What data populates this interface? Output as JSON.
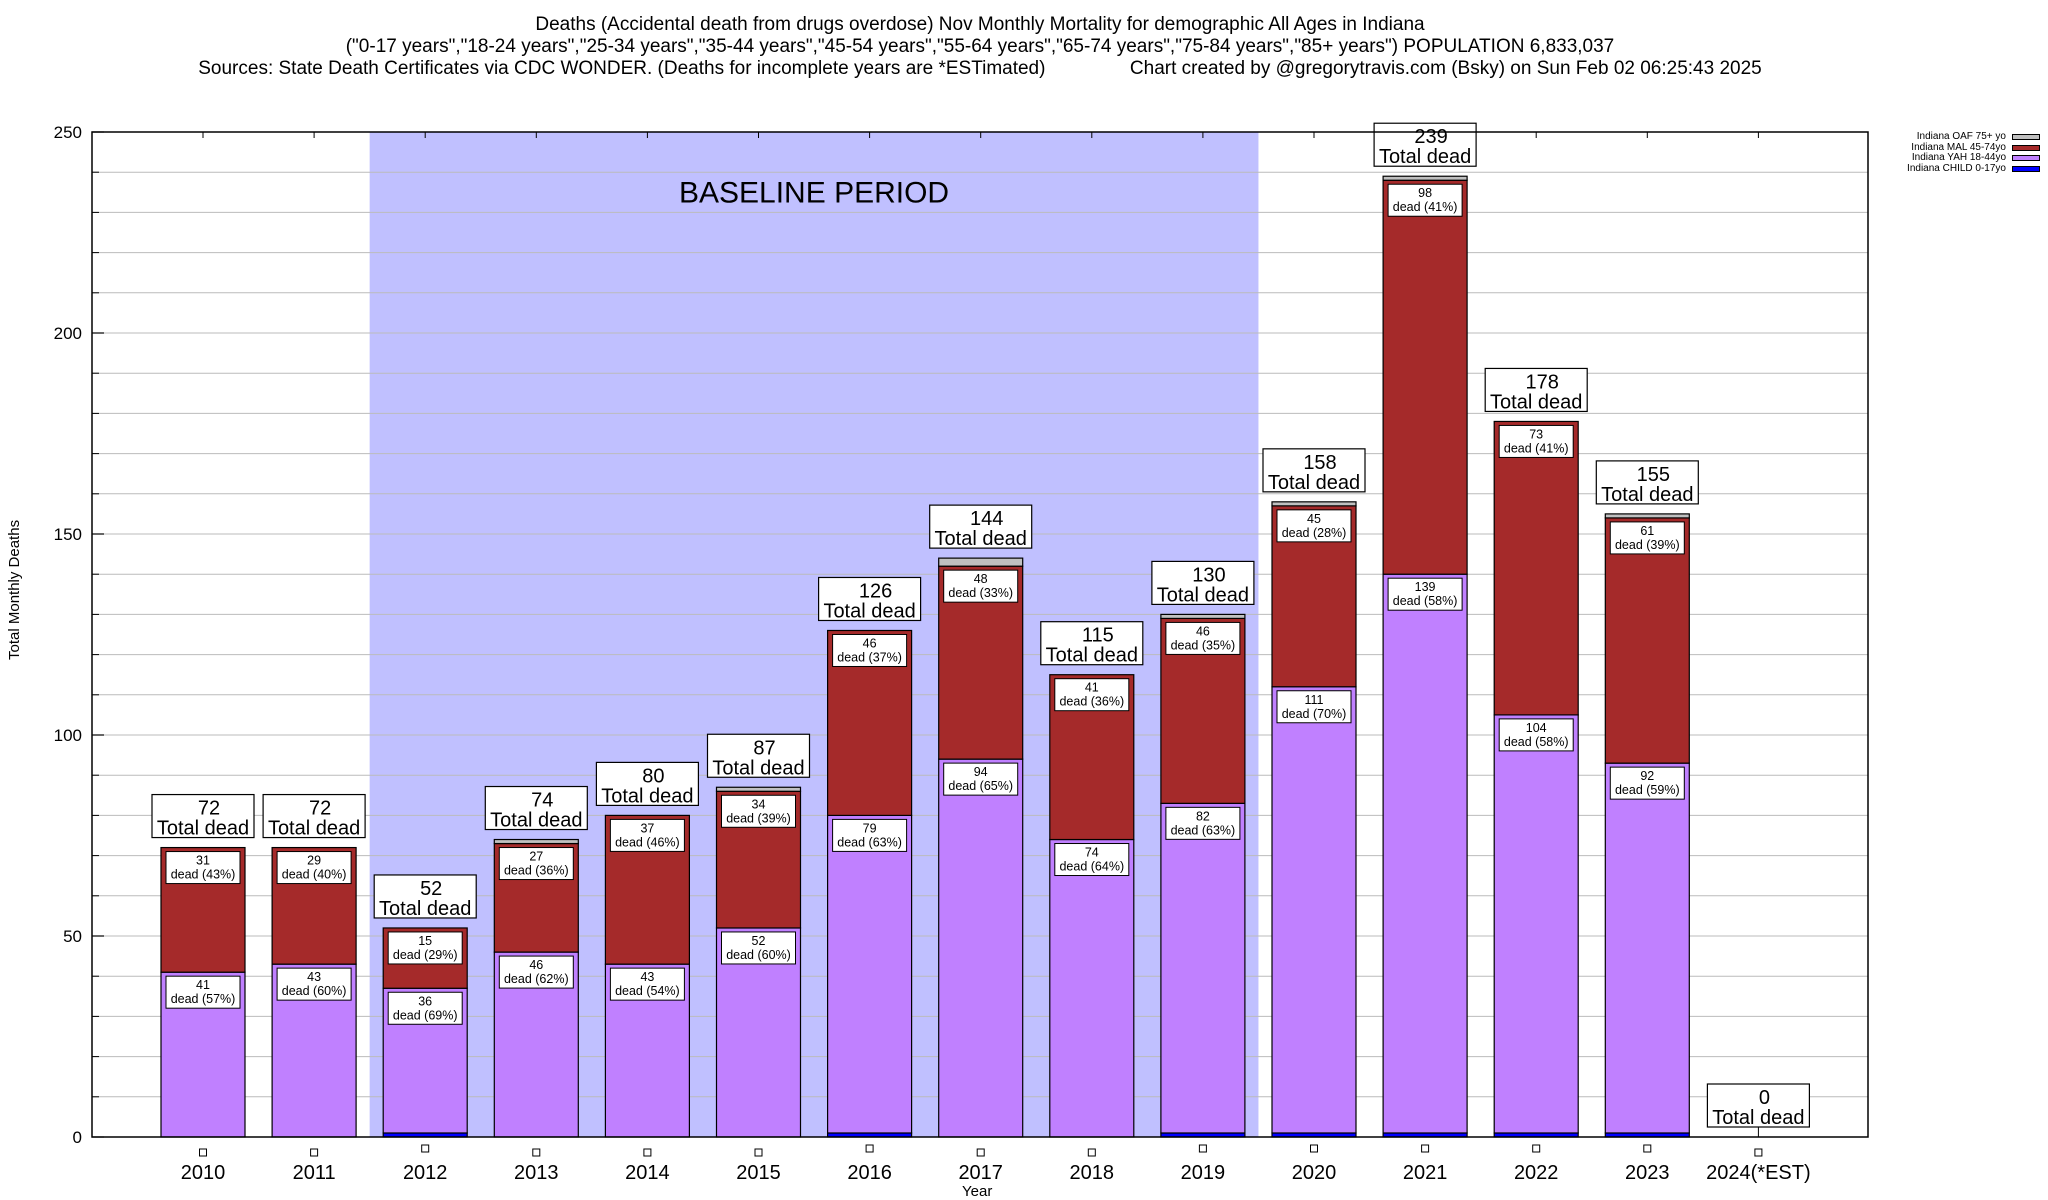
{
  "chart_data": {
    "type": "bar",
    "stacked": true,
    "title_lines": [
      "Deaths (Accidental death from drugs overdose) Nov Monthly Mortality for demographic All Ages in Indiana",
      "(\"0-17 years\",\"18-24 years\",\"25-34 years\",\"35-44 years\",\"45-54 years\",\"55-64 years\",\"65-74 years\",\"75-84 years\",\"85+ years\") POPULATION 6,833,037",
      "Sources: State Death Certificates via CDC WONDER. (Deaths for incomplete years are *ESTimated)                Chart created by @gregorytravis.com (Bsky) on Sun Feb 02 06:25:43 2025"
    ],
    "xlabel": "Year",
    "ylabel": "Total Monthly Deaths",
    "ylim": [
      0,
      250
    ],
    "yticks": [
      0,
      50,
      100,
      150,
      200,
      250
    ],
    "minor_grid_step": 10,
    "grid": true,
    "legend_position": "top-right",
    "categories": [
      "2010",
      "2011",
      "2012",
      "2013",
      "2014",
      "2015",
      "2016",
      "2017",
      "2018",
      "2019",
      "2020",
      "2021",
      "2022",
      "2023",
      "2024(*EST)"
    ],
    "series": [
      {
        "name": "Indiana CHILD 0-17yo",
        "color": "#0000ff",
        "values": [
          0,
          0,
          1,
          0,
          0,
          0,
          1,
          0,
          0,
          1,
          1,
          1,
          1,
          1,
          0
        ]
      },
      {
        "name": "Indiana YAH 18-44yo",
        "color": "#c080ff",
        "values": [
          41,
          43,
          36,
          46,
          43,
          52,
          79,
          94,
          74,
          82,
          111,
          139,
          104,
          92,
          0
        ],
        "labels": [
          "41|dead (57%)",
          "43|dead (60%)",
          "36|dead (69%)",
          "46|dead (62%)",
          "43|dead (54%)",
          "52|dead (60%)",
          "79|dead (63%)",
          "94|dead (65%)",
          "74|dead (64%)",
          "82|dead (63%)",
          "111|dead (70%)",
          "139|dead (58%)",
          "104|dead (58%)",
          "92|dead (59%)",
          ""
        ]
      },
      {
        "name": "Indiana MAL 45-74yo",
        "color": "#a52a2a",
        "values": [
          31,
          29,
          15,
          27,
          37,
          34,
          46,
          48,
          41,
          46,
          45,
          98,
          73,
          61,
          0
        ],
        "labels": [
          "31|dead (43%)",
          "29|dead (40%)",
          "15|dead (29%)",
          "27|dead (36%)",
          "37|dead (46%)",
          "34|dead (39%)",
          "46|dead (37%)",
          "48|dead (33%)",
          "41|dead (36%)",
          "46|dead (35%)",
          "45|dead (28%)",
          "98|dead (41%)",
          "73|dead (41%)",
          "61|dead (39%)",
          ""
        ]
      },
      {
        "name": "Indiana OAF 75+ yo",
        "color": "#c0c0c0",
        "values": [
          0,
          0,
          0,
          1,
          0,
          1,
          0,
          2,
          0,
          1,
          1,
          1,
          0,
          1,
          0
        ]
      }
    ],
    "totals": [
      72,
      72,
      52,
      74,
      80,
      87,
      126,
      144,
      115,
      130,
      158,
      239,
      178,
      155,
      0
    ],
    "total_suffix": "Total dead",
    "annotation": {
      "text": "BASELINE PERIOD",
      "from_category": "2012",
      "to_category": "2019",
      "color": "#c0c0ff"
    }
  }
}
